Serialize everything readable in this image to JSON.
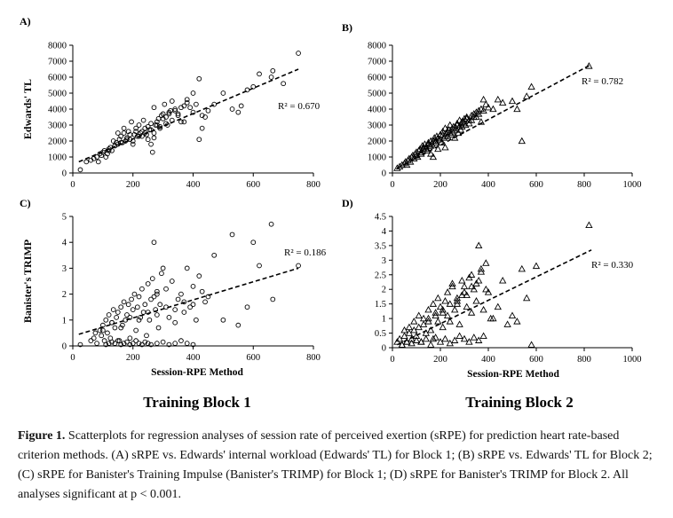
{
  "figure": {
    "block_labels": [
      "Training Block 1",
      "Training Block 2"
    ]
  },
  "chart_data": [
    {
      "panel": "A)",
      "type": "scatter",
      "marker": "circle",
      "xlim": [
        0,
        800
      ],
      "xticks": [
        0,
        200,
        400,
        600,
        800
      ],
      "ylim": [
        0,
        8000
      ],
      "yticks": [
        0,
        1000,
        2000,
        3000,
        4000,
        5000,
        6000,
        7000,
        8000
      ],
      "xlabel": "",
      "ylabel": "Edwards' TL",
      "r2_label": "R² = 0.670",
      "trend": {
        "x": [
          20,
          750
        ],
        "y": [
          700,
          6500
        ]
      },
      "points": {
        "x": [
          25,
          45,
          60,
          70,
          80,
          85,
          90,
          95,
          100,
          105,
          110,
          115,
          120,
          125,
          130,
          135,
          140,
          145,
          150,
          155,
          160,
          165,
          170,
          175,
          180,
          185,
          190,
          195,
          200,
          205,
          210,
          215,
          220,
          225,
          230,
          235,
          240,
          245,
          250,
          255,
          260,
          265,
          270,
          275,
          280,
          285,
          290,
          295,
          300,
          305,
          310,
          315,
          320,
          325,
          330,
          340,
          350,
          360,
          370,
          380,
          390,
          400,
          410,
          420,
          430,
          440,
          450,
          470,
          500,
          530,
          550,
          560,
          580,
          600,
          620,
          660,
          665,
          700,
          750,
          150,
          170,
          190,
          210,
          230,
          250,
          270,
          290,
          310,
          330,
          350,
          370,
          120,
          140,
          160,
          180,
          200,
          220,
          240,
          260,
          280,
          300,
          320,
          340,
          360,
          380,
          400,
          260,
          270,
          420,
          430
        ],
        "y": [
          200,
          700,
          800,
          900,
          1000,
          700,
          1200,
          1100,
          1300,
          1400,
          1000,
          1200,
          1500,
          1600,
          1400,
          2000,
          1700,
          1900,
          1800,
          2100,
          2300,
          1900,
          2500,
          2000,
          2200,
          2600,
          2100,
          3200,
          2000,
          2400,
          2800,
          2300,
          3000,
          2500,
          2600,
          3300,
          2800,
          2400,
          2900,
          2700,
          3100,
          1300,
          2500,
          3000,
          3200,
          3400,
          2800,
          3600,
          3700,
          4300,
          3500,
          3000,
          3800,
          3900,
          4500,
          4000,
          3700,
          3200,
          4200,
          4400,
          4100,
          3800,
          4300,
          5900,
          2800,
          3500,
          3900,
          4300,
          5000,
          4000,
          3800,
          4200,
          5200,
          5400,
          6200,
          6000,
          6400,
          5600,
          7500,
          2500,
          2800,
          2400,
          2600,
          2300,
          2100,
          2200,
          2900,
          3100,
          3300,
          3600,
          3200,
          1400,
          1700,
          1900,
          2100,
          1800,
          2300,
          2500,
          2700,
          3000,
          3400,
          3700,
          3900,
          4100,
          4600,
          5000,
          1800,
          4100,
          2100,
          3600
        ]
      }
    },
    {
      "panel": "B)",
      "type": "scatter",
      "marker": "triangle",
      "xlim": [
        0,
        1000
      ],
      "xticks": [
        0,
        200,
        400,
        600,
        800,
        1000
      ],
      "ylim": [
        0,
        8000
      ],
      "yticks": [
        0,
        1000,
        2000,
        3000,
        4000,
        5000,
        6000,
        7000,
        8000
      ],
      "xlabel": "",
      "ylabel": "",
      "r2_label": "R² = 0.782",
      "trend": {
        "x": [
          20,
          830
        ],
        "y": [
          300,
          6800
        ]
      },
      "points": {
        "x": [
          20,
          30,
          40,
          50,
          55,
          60,
          65,
          70,
          75,
          80,
          85,
          90,
          95,
          100,
          105,
          110,
          115,
          120,
          125,
          130,
          135,
          140,
          145,
          150,
          155,
          160,
          165,
          170,
          175,
          180,
          185,
          190,
          195,
          200,
          205,
          210,
          215,
          220,
          225,
          230,
          235,
          240,
          245,
          250,
          255,
          260,
          265,
          270,
          275,
          280,
          285,
          290,
          295,
          300,
          305,
          310,
          320,
          330,
          340,
          350,
          360,
          370,
          380,
          390,
          400,
          420,
          440,
          460,
          500,
          520,
          540,
          560,
          580,
          820,
          130,
          150,
          170,
          190,
          210,
          230,
          250,
          270,
          290,
          310,
          330,
          350,
          370,
          100,
          120,
          140,
          160,
          180,
          200,
          220,
          240,
          260,
          280,
          300,
          320,
          340,
          360,
          380,
          160,
          220
        ],
        "y": [
          300,
          400,
          500,
          600,
          700,
          500,
          800,
          900,
          700,
          1000,
          1100,
          900,
          1200,
          1300,
          1000,
          1400,
          1500,
          1200,
          1700,
          1500,
          1800,
          1600,
          1400,
          1900,
          1700,
          2000,
          1800,
          1000,
          2200,
          2000,
          2300,
          1500,
          2100,
          2400,
          1900,
          2600,
          2200,
          2800,
          2500,
          2300,
          2700,
          3000,
          2400,
          2600,
          2900,
          2200,
          2800,
          3100,
          2500,
          3300,
          2700,
          2900,
          3200,
          3400,
          3000,
          3500,
          3100,
          3300,
          3700,
          3500,
          3900,
          3200,
          4600,
          4300,
          4100,
          4000,
          4600,
          4400,
          4500,
          4000,
          2000,
          4800,
          5400,
          6700,
          1600,
          1800,
          2000,
          2200,
          2400,
          2600,
          2800,
          3000,
          3200,
          3400,
          3600,
          3800,
          4000,
          1100,
          1300,
          1500,
          1700,
          1900,
          2100,
          2300,
          2500,
          2700,
          2900,
          3100,
          3300,
          3500,
          3700,
          3900,
          1200,
          1600
        ]
      }
    },
    {
      "panel": "C)",
      "type": "scatter",
      "marker": "circle",
      "xlim": [
        0,
        800
      ],
      "xticks": [
        0,
        200,
        400,
        600,
        800
      ],
      "ylim": [
        0,
        5
      ],
      "yticks": [
        0,
        1,
        2,
        3,
        4,
        5
      ],
      "xlabel": "Session-RPE Method",
      "ylabel": "Banister's TRIMP",
      "r2_label": "R² = 0.186",
      "trend": {
        "x": [
          20,
          750
        ],
        "y": [
          0.45,
          3.0
        ]
      },
      "points": {
        "x": [
          25,
          60,
          70,
          75,
          80,
          90,
          95,
          100,
          105,
          110,
          115,
          120,
          125,
          130,
          135,
          140,
          145,
          150,
          155,
          160,
          165,
          170,
          175,
          180,
          185,
          190,
          195,
          200,
          205,
          210,
          215,
          220,
          225,
          230,
          235,
          240,
          245,
          250,
          255,
          260,
          265,
          270,
          275,
          280,
          285,
          290,
          295,
          300,
          310,
          320,
          330,
          340,
          350,
          360,
          370,
          380,
          390,
          400,
          410,
          420,
          430,
          440,
          450,
          470,
          500,
          530,
          550,
          580,
          600,
          620,
          660,
          665,
          750,
          110,
          120,
          130,
          140,
          150,
          160,
          170,
          180,
          190,
          200,
          210,
          220,
          230,
          240,
          250,
          260,
          280,
          300,
          320,
          340,
          360,
          380,
          400,
          100,
          130,
          160,
          190,
          220,
          250,
          280,
          310,
          340,
          370,
          400,
          270,
          280
        ],
        "y": [
          0.05,
          0.2,
          0.3,
          0.5,
          0.1,
          0.6,
          0.4,
          0.8,
          0.2,
          1.0,
          0.5,
          1.2,
          0.3,
          0.9,
          1.4,
          0.7,
          1.1,
          1.3,
          0.2,
          1.5,
          0.8,
          1.7,
          1.0,
          1.2,
          1.6,
          0.3,
          1.8,
          1.4,
          2.0,
          0.6,
          1.5,
          1.9,
          1.1,
          2.2,
          1.3,
          1.6,
          0.4,
          2.4,
          1.0,
          1.8,
          2.6,
          4.0,
          1.4,
          2.0,
          0.7,
          1.6,
          2.8,
          3.0,
          2.2,
          1.1,
          2.5,
          0.9,
          1.8,
          2.0,
          1.3,
          3.0,
          1.5,
          2.3,
          1.0,
          2.7,
          2.1,
          1.7,
          1.9,
          3.5,
          1.0,
          4.3,
          0.8,
          1.5,
          4.0,
          3.1,
          4.7,
          1.8,
          3.1,
          0.05,
          0.1,
          0.15,
          0.1,
          0.2,
          0.05,
          0.1,
          0.15,
          0.05,
          0.1,
          0.2,
          0.1,
          0.05,
          0.15,
          0.1,
          0.05,
          0.1,
          0.15,
          0.05,
          0.1,
          0.2,
          0.1,
          0.05,
          0.6,
          0.9,
          0.7,
          1.1,
          1.0,
          1.3,
          1.2,
          1.5,
          1.4,
          1.7,
          1.6,
          1.9,
          2.1
        ]
      }
    },
    {
      "panel": "D)",
      "type": "scatter",
      "marker": "triangle",
      "xlim": [
        0,
        1000
      ],
      "xticks": [
        0,
        200,
        400,
        600,
        800,
        1000
      ],
      "ylim": [
        0,
        4.5
      ],
      "yticks": [
        0,
        0.5,
        1,
        1.5,
        2,
        2.5,
        3,
        3.5,
        4,
        4.5
      ],
      "xlabel": "Session-RPE Method",
      "ylabel": "",
      "r2_label": "R² = 0.330",
      "trend": {
        "x": [
          20,
          830
        ],
        "y": [
          0.1,
          3.35
        ]
      },
      "points": {
        "x": [
          20,
          30,
          40,
          50,
          60,
          70,
          80,
          90,
          100,
          110,
          120,
          130,
          140,
          150,
          160,
          170,
          180,
          190,
          200,
          210,
          220,
          230,
          240,
          250,
          260,
          270,
          280,
          290,
          300,
          310,
          320,
          330,
          340,
          350,
          360,
          370,
          380,
          390,
          400,
          420,
          440,
          460,
          480,
          500,
          520,
          540,
          560,
          580,
          600,
          820,
          40,
          60,
          80,
          100,
          120,
          140,
          160,
          180,
          200,
          220,
          240,
          260,
          280,
          300,
          320,
          340,
          360,
          380,
          50,
          70,
          90,
          110,
          130,
          150,
          170,
          190,
          210,
          230,
          250,
          270,
          290,
          310,
          330,
          350,
          370,
          390,
          410,
          150,
          180,
          210,
          240,
          270,
          300,
          330,
          360
        ],
        "y": [
          0.2,
          0.3,
          0.1,
          0.4,
          0.2,
          0.5,
          0.3,
          0.6,
          0.4,
          0.7,
          0.2,
          0.8,
          0.5,
          1.0,
          0.6,
          0.3,
          1.2,
          0.9,
          1.4,
          0.7,
          1.6,
          1.1,
          0.9,
          2.2,
          1.3,
          1.5,
          0.8,
          1.8,
          2.1,
          1.4,
          2.4,
          1.2,
          2.0,
          1.6,
          3.5,
          2.6,
          1.3,
          2.9,
          1.9,
          1.0,
          1.4,
          2.3,
          0.8,
          1.1,
          0.9,
          2.7,
          1.7,
          0.1,
          2.8,
          4.2,
          0.1,
          0.2,
          0.15,
          0.25,
          0.2,
          0.3,
          0.1,
          0.35,
          0.2,
          0.3,
          0.15,
          0.25,
          0.4,
          0.3,
          0.2,
          0.35,
          0.25,
          0.4,
          0.6,
          0.7,
          0.9,
          1.1,
          1.0,
          1.3,
          1.5,
          1.7,
          1.2,
          1.9,
          2.1,
          1.6,
          2.3,
          1.8,
          2.5,
          2.2,
          2.7,
          2.0,
          1.0,
          0.9,
          1.1,
          1.3,
          1.5,
          1.7,
          1.9,
          2.1,
          2.3
        ]
      }
    }
  ],
  "caption": {
    "prefix": "Figure 1.",
    "text": " Scatterplots for regression analyses of session rate of perceived exertion (sRPE) for prediction heart rate-based criterion methods. (A) sRPE vs. Edwards' internal workload (Edwards' TL) for Block 1; (B) sRPE vs. Edwards' TL for Block 2; (C) sRPE for Banister's Training Impulse (Banister's TRIMP) for Block 1; (D) sRPE for Banister's TRIMP for Block 2. All analyses significant at p < 0.001."
  }
}
